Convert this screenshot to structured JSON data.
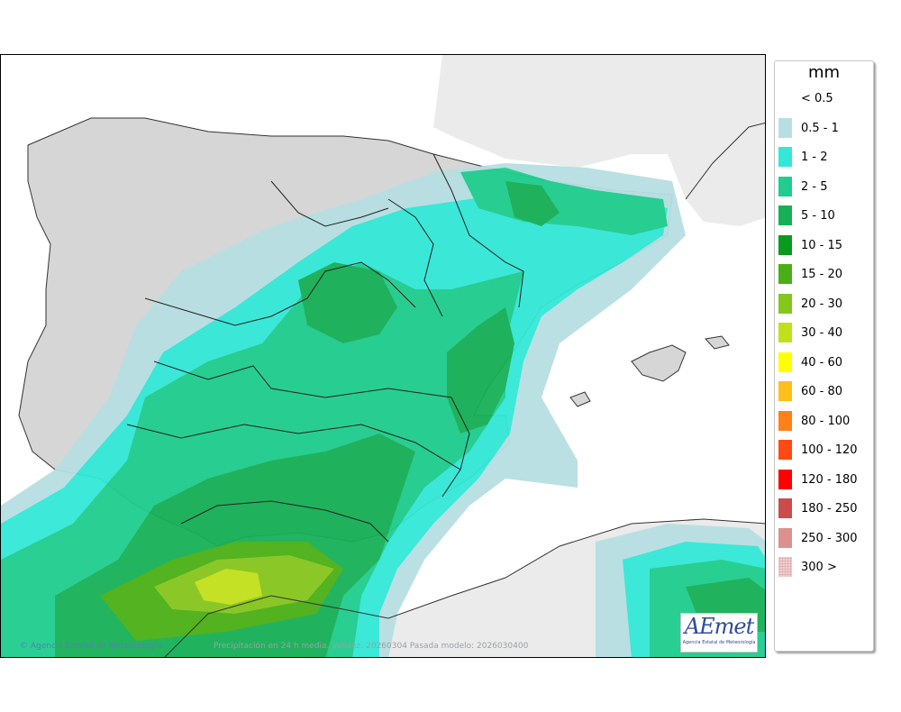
{
  "legend": {
    "unit": "mm",
    "items": [
      {
        "label": "< 0.5",
        "color": "#ffffff"
      },
      {
        "label": "0.5 - 1",
        "color": "#b7dfe2"
      },
      {
        "label": "1 - 2",
        "color": "#33e8d8"
      },
      {
        "label": "2 - 5",
        "color": "#1fcd8e"
      },
      {
        "label": "5 - 10",
        "color": "#17b057"
      },
      {
        "label": "10 - 15",
        "color": "#0a9a1f"
      },
      {
        "label": "15 - 20",
        "color": "#4aaf16"
      },
      {
        "label": "20 - 30",
        "color": "#85c61c"
      },
      {
        "label": "30 - 40",
        "color": "#c2e01a"
      },
      {
        "label": "40 - 60",
        "color": "#ffff00"
      },
      {
        "label": "60 - 80",
        "color": "#ffbf1b"
      },
      {
        "label": "80 - 100",
        "color": "#ff8019"
      },
      {
        "label": "100 - 120",
        "color": "#ff4a14"
      },
      {
        "label": "120 - 180",
        "color": "#ff0000"
      },
      {
        "label": "180 - 250",
        "color": "#cc4c4c"
      },
      {
        "label": "250 - 300",
        "color": "#dc9090"
      },
      {
        "label": "300 >",
        "color": "#f2cfcf"
      }
    ]
  },
  "credit": "© Agencia Estatal de Meteorología",
  "caption": "Precipitación en 24 h media. Validez: 20260304 Pasada modelo: 2026030400",
  "logo": {
    "text": "AEmet",
    "subtitle": "Agencia Estatal de Meteorología"
  },
  "colors": {
    "land": "#d6d6d6",
    "foreign_land": "#ebebeb",
    "sea": "#ffffff",
    "border": "#000000"
  }
}
